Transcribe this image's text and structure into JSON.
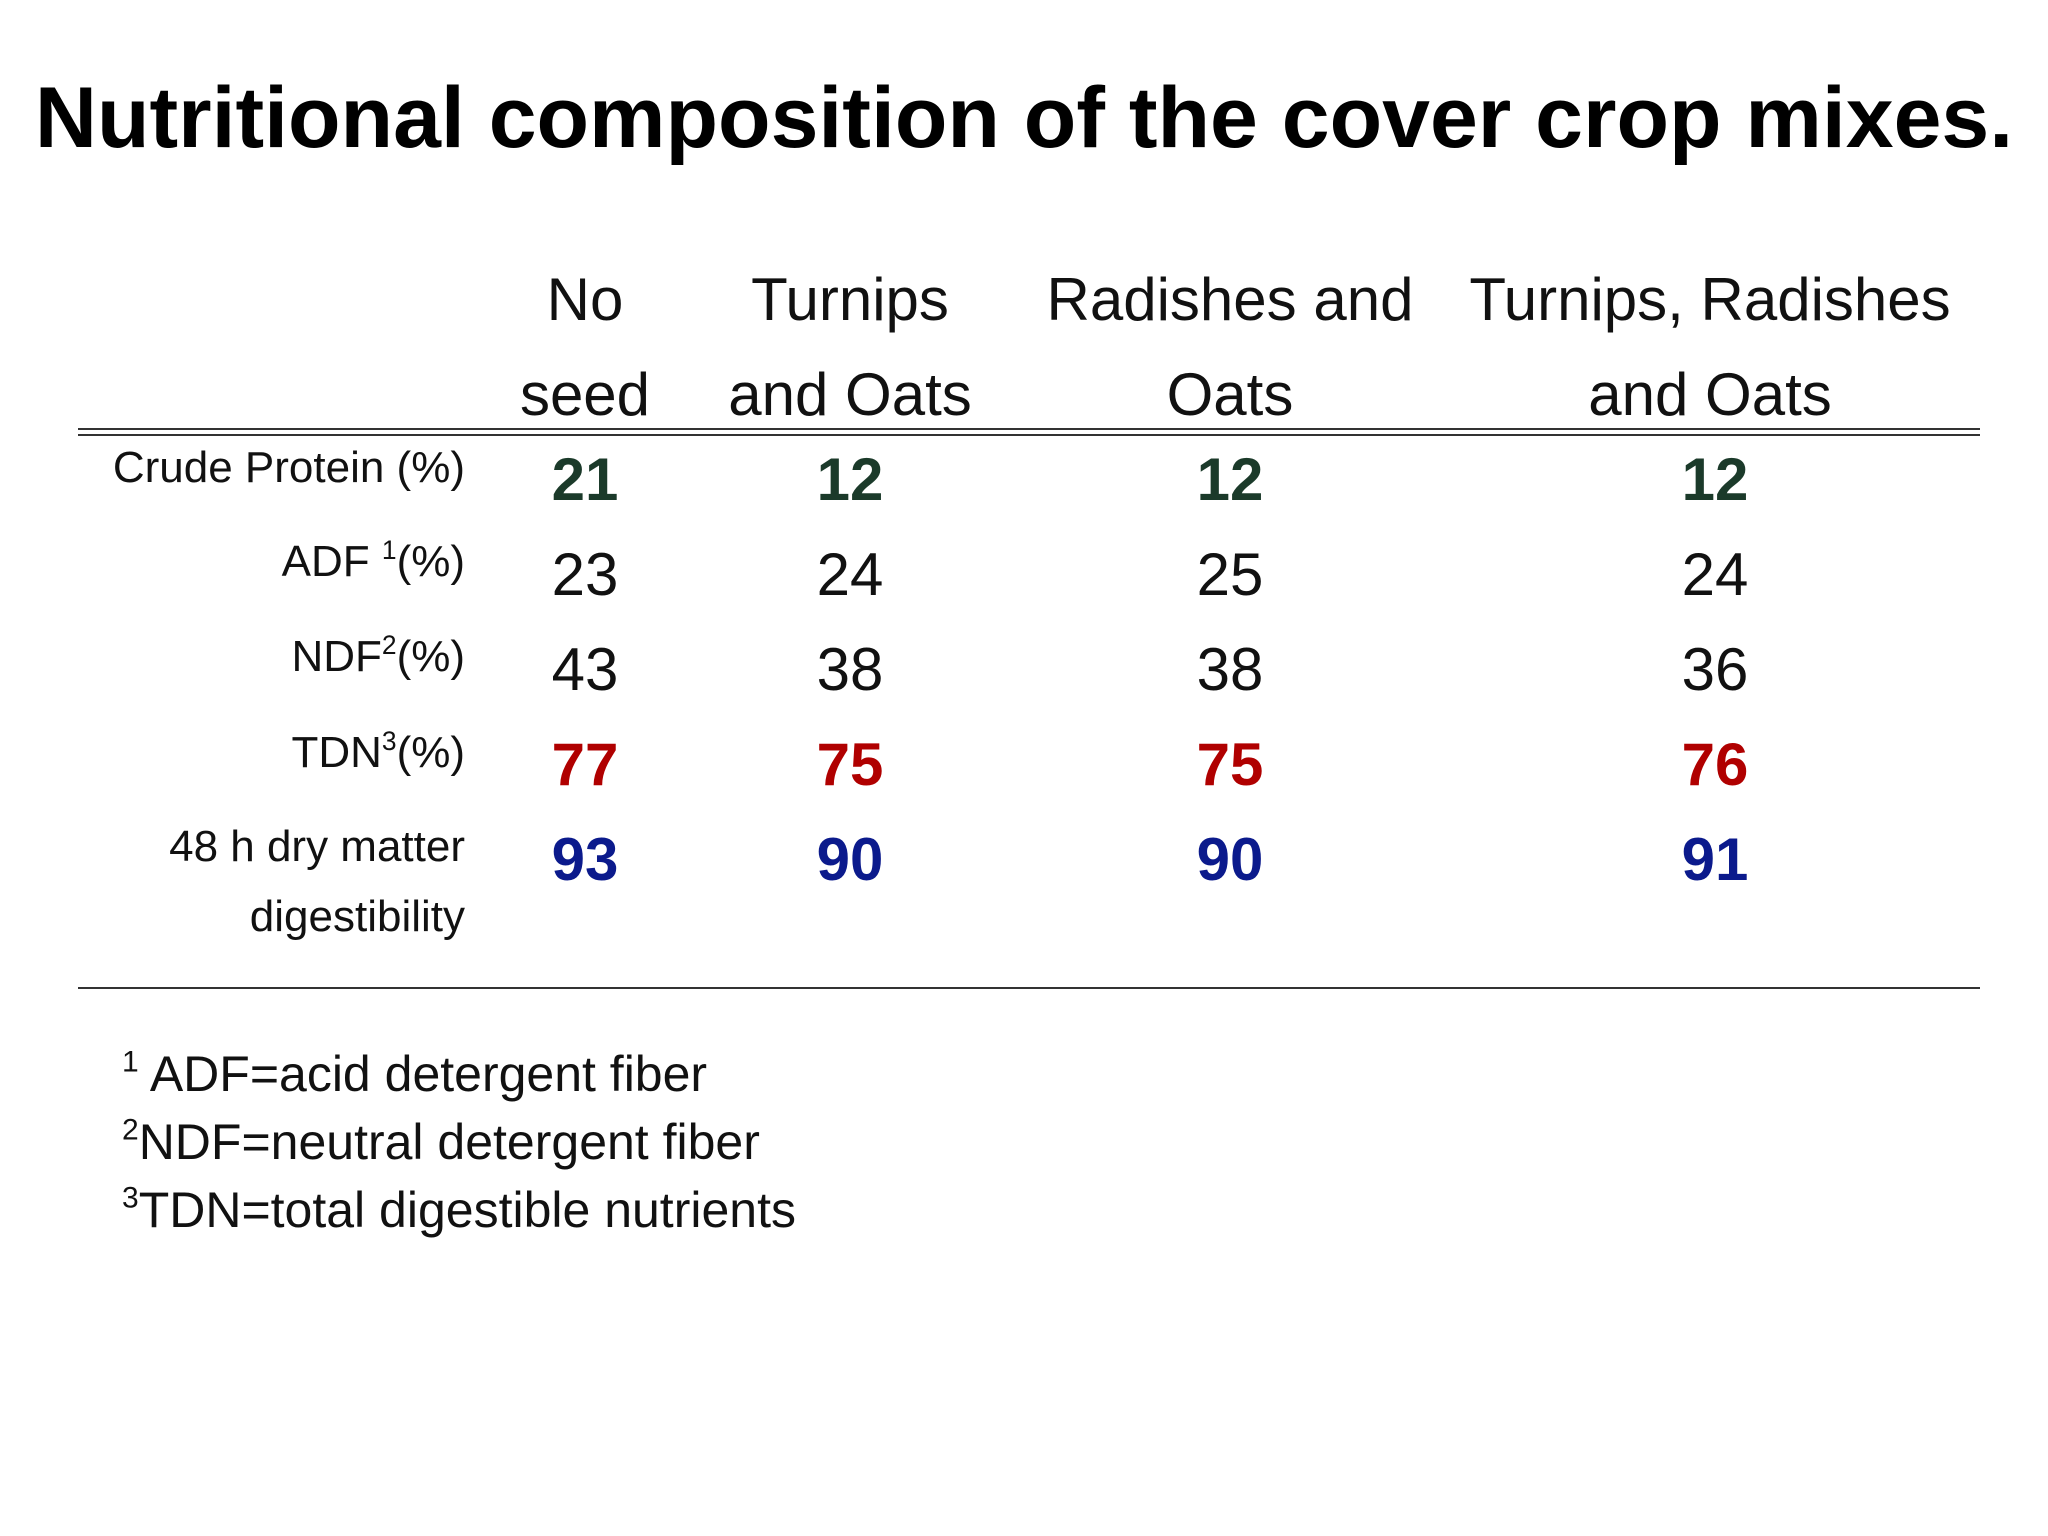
{
  "title": "Nutritional composition of the cover crop mixes.",
  "columns": [
    {
      "line1": "No",
      "line2": "seed"
    },
    {
      "line1": "Turnips",
      "line2": "and Oats"
    },
    {
      "line1": "Radishes and",
      "line2": "Oats"
    },
    {
      "line1": "Turnips, Radishes",
      "line2": "and Oats"
    }
  ],
  "rows": [
    {
      "label": "Crude Protein (%)",
      "values": [
        "21",
        "12",
        "12",
        "12"
      ],
      "color": "#1b3a2a"
    },
    {
      "label_pre": "ADF ",
      "label_sup": "1",
      "label_post": "(%)",
      "values": [
        "23",
        "24",
        "25",
        "24"
      ],
      "color": "#111111"
    },
    {
      "label_pre": "NDF",
      "label_sup": "2",
      "label_post": "(%)",
      "values": [
        "43",
        "38",
        "38",
        "36"
      ],
      "color": "#111111"
    },
    {
      "label_pre": "TDN",
      "label_sup": "3",
      "label_post": "(%)",
      "values": [
        "77",
        "75",
        "75",
        "76"
      ],
      "color": "#b00000"
    },
    {
      "label_line1": "48 h dry matter",
      "label_line2": "digestibility",
      "values": [
        "93",
        "90",
        "90",
        "91"
      ],
      "color": "#0b1a8c"
    }
  ],
  "footnotes": [
    {
      "sup": "1",
      "text": " ADF=acid detergent fiber"
    },
    {
      "sup": "2",
      "text": "NDF=neutral detergent fiber"
    },
    {
      "sup": "3",
      "text": "TDN=total digestible nutrients"
    }
  ]
}
